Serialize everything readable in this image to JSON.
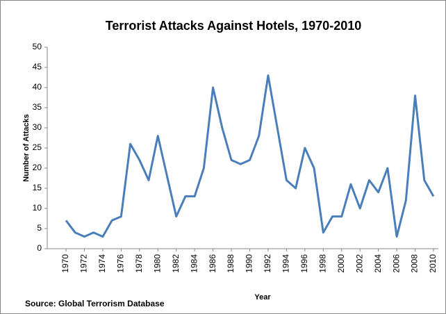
{
  "chart_data": {
    "type": "line",
    "title": "Terrorist Attacks Against Hotels, 1970-2010",
    "xlabel": "Year",
    "ylabel": "Number of Attacks",
    "source": "Source: Global Terrorism Database",
    "x": [
      1970,
      1971,
      1972,
      1973,
      1974,
      1975,
      1976,
      1977,
      1978,
      1979,
      1980,
      1981,
      1982,
      1983,
      1984,
      1985,
      1986,
      1987,
      1988,
      1989,
      1990,
      1991,
      1992,
      1993,
      1994,
      1995,
      1996,
      1997,
      1998,
      1999,
      2000,
      2001,
      2002,
      2003,
      2004,
      2005,
      2006,
      2007,
      2008,
      2009,
      2010
    ],
    "values": [
      7,
      4,
      3,
      4,
      3,
      7,
      8,
      26,
      22,
      17,
      28,
      18,
      8,
      13,
      13,
      20,
      40,
      30,
      22,
      21,
      22,
      28,
      43,
      30,
      17,
      15,
      25,
      20,
      4,
      8,
      8,
      16,
      10,
      17,
      14,
      20,
      3,
      12,
      38,
      17,
      13
    ],
    "color": "#4a7ebb",
    "xlim": [
      1970,
      2010
    ],
    "xticks": [
      1970,
      1972,
      1974,
      1976,
      1978,
      1980,
      1982,
      1984,
      1986,
      1988,
      1990,
      1992,
      1994,
      1996,
      1998,
      2000,
      2002,
      2004,
      2006,
      2008,
      2010
    ],
    "ylim": [
      0,
      50
    ],
    "yticks": [
      0,
      5,
      10,
      15,
      20,
      25,
      30,
      35,
      40,
      45,
      50
    ],
    "grid": false
  }
}
